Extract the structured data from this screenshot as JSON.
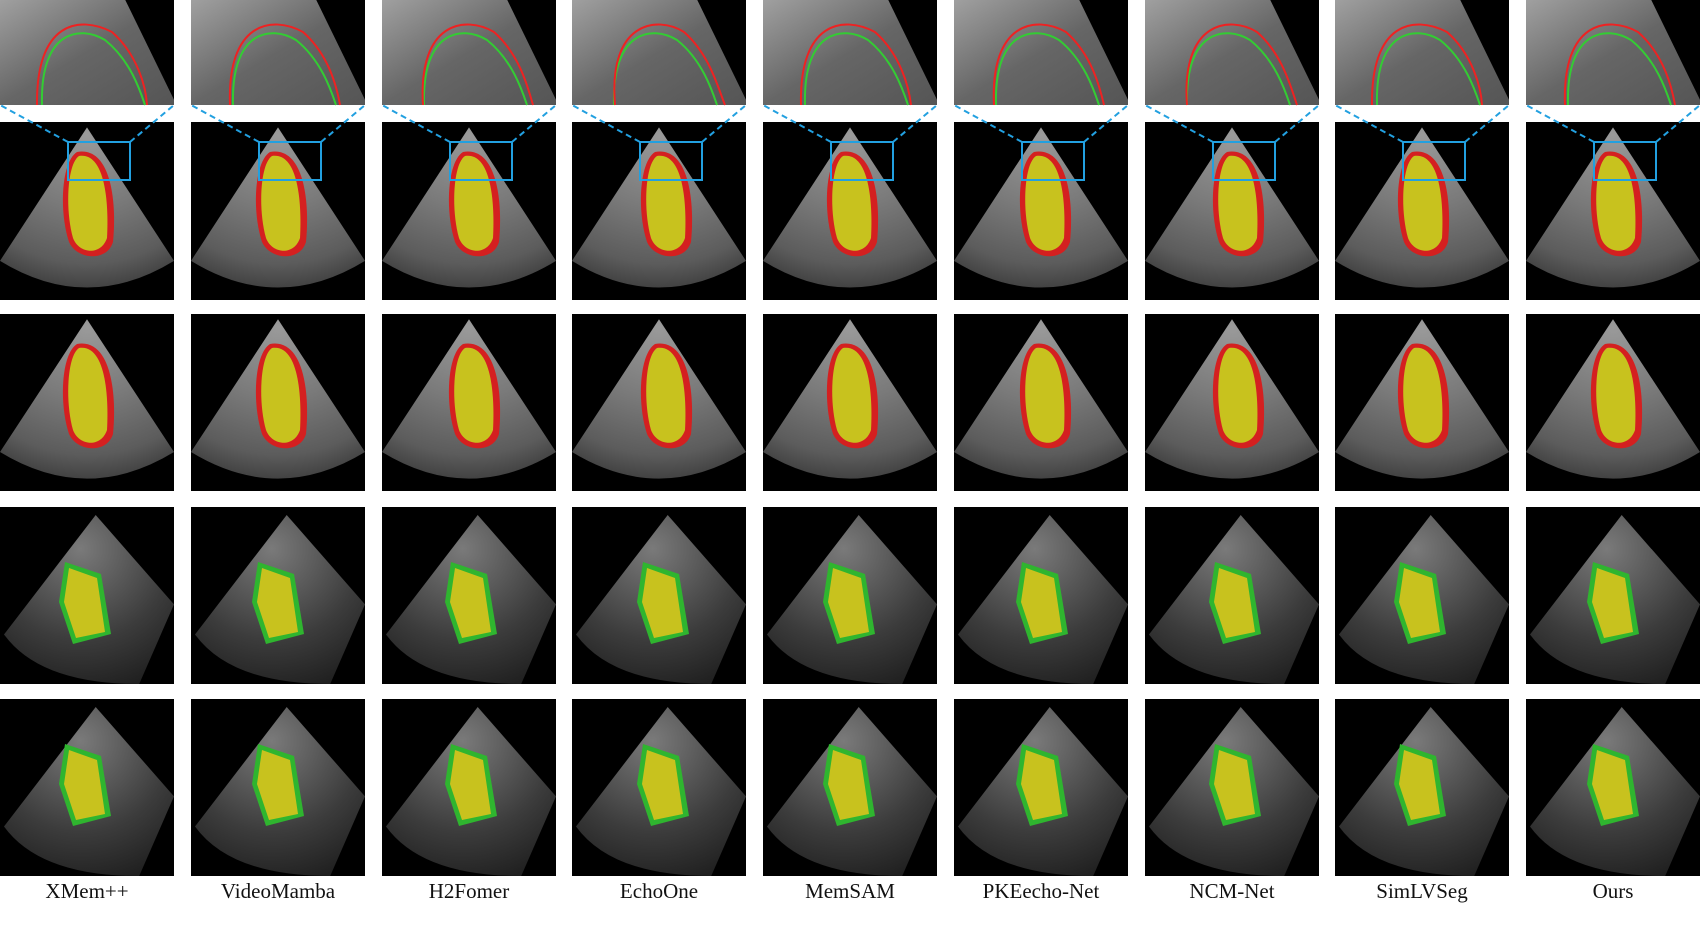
{
  "methods": [
    "XMem++",
    "VideoMamba",
    "H2Fomer",
    "EchoOne",
    "MemSAM",
    "PKEecho-Net",
    "NCM-Net",
    "SimLVSeg",
    "Ours"
  ]
}
